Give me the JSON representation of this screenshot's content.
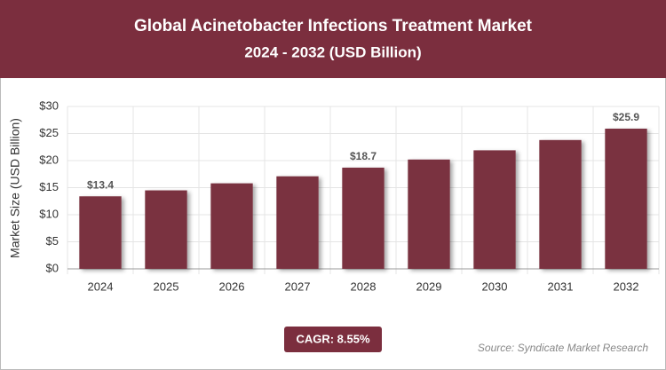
{
  "chart_data": {
    "type": "bar",
    "title": "Global Acinetobacter Infections Treatment Market",
    "subtitle": "2024 - 2032 (USD Billion)",
    "y_label": "Market Size (USD Billion)",
    "categories": [
      "2024",
      "2025",
      "2026",
      "2027",
      "2028",
      "2029",
      "2030",
      "2031",
      "2032"
    ],
    "values": [
      13.4,
      14.5,
      15.8,
      17.1,
      18.7,
      20.2,
      21.9,
      23.8,
      25.9
    ],
    "value_labels": [
      "$13.4",
      null,
      null,
      null,
      "$18.7",
      null,
      null,
      null,
      "$25.9"
    ],
    "color": "#7a3040",
    "ylim": [
      0,
      30
    ],
    "yticks": [
      {
        "value": 0,
        "label": "$0"
      },
      {
        "value": 5,
        "label": "$5"
      },
      {
        "value": 10,
        "label": "$10"
      },
      {
        "value": 15,
        "label": "$15"
      },
      {
        "value": 20,
        "label": "$20"
      },
      {
        "value": 25,
        "label": "$25"
      },
      {
        "value": 30,
        "label": "$30"
      }
    ],
    "grid": true,
    "cagr": "CAGR: 8.55%",
    "source": "Source: Syndicate Market Research"
  }
}
